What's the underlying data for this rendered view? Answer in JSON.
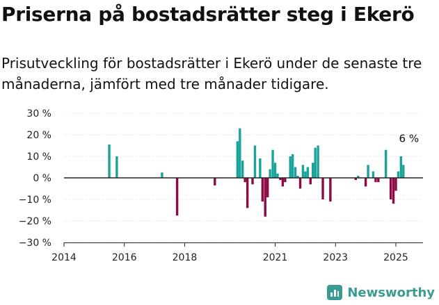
{
  "header": {
    "title": "Priserna på bostadsrätter steg i Ekerö",
    "subtitle": "Prisutveckling för bostadsrätter i Ekerö under de senaste tre månaderna, jämfört med tre månader tidigare."
  },
  "brand": {
    "name": "Newsworthy",
    "icon": "bar-chart-icon",
    "color": "#3a9b93"
  },
  "colors": {
    "positive": "#1aa39a",
    "negative": "#8c0a46",
    "axis": "#222222",
    "grid": "#d9d9d9"
  },
  "chart_data": {
    "type": "bar",
    "title": "",
    "xlabel": "",
    "ylabel": "",
    "unit": "%",
    "ylim": [
      -30,
      30
    ],
    "yticks": [
      30,
      20,
      10,
      0,
      -10,
      -20,
      -30
    ],
    "ytick_labels": [
      "30 %",
      "20 %",
      "10 %",
      "0 %",
      "−10 %",
      "−20 %",
      "−30 %"
    ],
    "xlim": [
      2014.0,
      2025.9
    ],
    "xticks": [
      2014,
      2016,
      2018,
      2021,
      2023,
      2025
    ],
    "xtick_labels": [
      "2014",
      "2016",
      "2018",
      "2021",
      "2023",
      "2025"
    ],
    "grid": true,
    "annotation": {
      "text": "6 %",
      "x": 2025.25,
      "y": 6
    },
    "points": [
      {
        "x": 2015.5,
        "y": 15.5
      },
      {
        "x": 2015.75,
        "y": 10
      },
      {
        "x": 2017.25,
        "y": 2.5
      },
      {
        "x": 2017.75,
        "y": -17.5
      },
      {
        "x": 2019.0,
        "y": -3.5
      },
      {
        "x": 2019.75,
        "y": 17
      },
      {
        "x": 2019.83,
        "y": 23
      },
      {
        "x": 2019.92,
        "y": 8
      },
      {
        "x": 2020.0,
        "y": -2
      },
      {
        "x": 2020.08,
        "y": -14
      },
      {
        "x": 2020.25,
        "y": -3
      },
      {
        "x": 2020.33,
        "y": 15
      },
      {
        "x": 2020.5,
        "y": 9
      },
      {
        "x": 2020.58,
        "y": -11
      },
      {
        "x": 2020.67,
        "y": -18
      },
      {
        "x": 2020.75,
        "y": -9
      },
      {
        "x": 2020.83,
        "y": 4
      },
      {
        "x": 2020.92,
        "y": 13
      },
      {
        "x": 2021.0,
        "y": 7
      },
      {
        "x": 2021.08,
        "y": 2
      },
      {
        "x": 2021.17,
        "y": -1
      },
      {
        "x": 2021.25,
        "y": -4
      },
      {
        "x": 2021.33,
        "y": -2
      },
      {
        "x": 2021.5,
        "y": 10
      },
      {
        "x": 2021.58,
        "y": 11
      },
      {
        "x": 2021.67,
        "y": 5
      },
      {
        "x": 2021.75,
        "y": 1
      },
      {
        "x": 2021.83,
        "y": -5
      },
      {
        "x": 2021.92,
        "y": 6
      },
      {
        "x": 2022.0,
        "y": 3
      },
      {
        "x": 2022.08,
        "y": 5
      },
      {
        "x": 2022.17,
        "y": -3
      },
      {
        "x": 2022.25,
        "y": 7
      },
      {
        "x": 2022.33,
        "y": 14
      },
      {
        "x": 2022.42,
        "y": 15
      },
      {
        "x": 2022.58,
        "y": -10
      },
      {
        "x": 2022.83,
        "y": -11
      },
      {
        "x": 2023.67,
        "y": -1
      },
      {
        "x": 2023.75,
        "y": 1
      },
      {
        "x": 2024.0,
        "y": -4
      },
      {
        "x": 2024.08,
        "y": 6
      },
      {
        "x": 2024.25,
        "y": 3
      },
      {
        "x": 2024.33,
        "y": -2
      },
      {
        "x": 2024.42,
        "y": -2
      },
      {
        "x": 2024.67,
        "y": 13
      },
      {
        "x": 2024.83,
        "y": -10
      },
      {
        "x": 2024.92,
        "y": -12
      },
      {
        "x": 2025.0,
        "y": -6
      },
      {
        "x": 2025.08,
        "y": 3
      },
      {
        "x": 2025.17,
        "y": 10
      },
      {
        "x": 2025.25,
        "y": 6
      }
    ]
  }
}
